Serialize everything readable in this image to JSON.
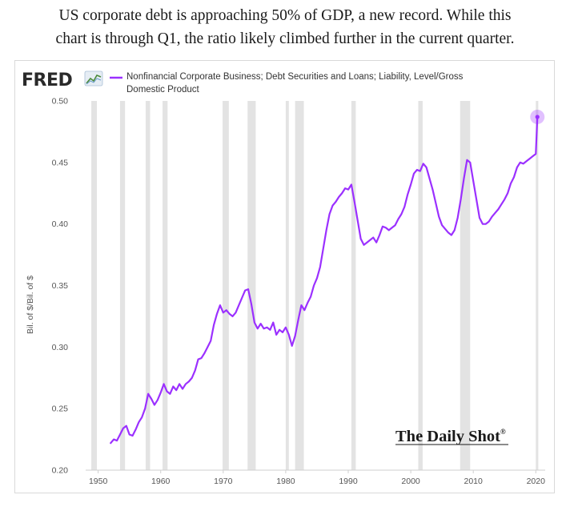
{
  "caption": {
    "line1": "US corporate debt is approaching 50% of GDP, a new record. While this",
    "line2": "chart is through Q1, the ratio likely climbed further in the current quarter."
  },
  "brand": {
    "fred_logo": "FRED",
    "watermark": "The Daily Shot",
    "watermark_mark": "®"
  },
  "colors": {
    "series": "#9b30ff",
    "recession": "#e3e3e3",
    "axis_text": "#555555",
    "grid": "#e6e6e6"
  },
  "chart_data": {
    "type": "line",
    "title": "",
    "xlabel": "",
    "ylabel": "Bil. of $/Bil. of $",
    "xlim": [
      1948,
      2021.5
    ],
    "ylim": [
      0.2,
      0.5
    ],
    "x_ticks": [
      "1950",
      "1960",
      "1970",
      "1980",
      "1990",
      "2000",
      "2010",
      "2020"
    ],
    "x_tick_values": [
      1950,
      1960,
      1970,
      1980,
      1990,
      2000,
      2010,
      2020
    ],
    "y_ticks": [
      "0.50",
      "0.45",
      "0.40",
      "0.35",
      "0.30",
      "0.25",
      "0.20"
    ],
    "y_tick_values": [
      0.5,
      0.45,
      0.4,
      0.35,
      0.3,
      0.25,
      0.2
    ],
    "grid": false,
    "legend_position": "top",
    "series": [
      {
        "name": "Nonfinancial Corporate Business; Debt Securities and Loans; Liability, Level/Gross Domestic Product",
        "last_point_highlighted": true,
        "x": [
          1952.0,
          1952.5,
          1953.0,
          1953.5,
          1954.0,
          1954.5,
          1955.0,
          1955.5,
          1956.0,
          1956.5,
          1957.0,
          1957.5,
          1958.0,
          1958.5,
          1959.0,
          1959.5,
          1960.0,
          1960.5,
          1961.0,
          1961.5,
          1962.0,
          1962.5,
          1963.0,
          1963.5,
          1964.0,
          1964.5,
          1965.0,
          1965.5,
          1966.0,
          1966.5,
          1967.0,
          1967.5,
          1968.0,
          1968.5,
          1969.0,
          1969.5,
          1970.0,
          1970.5,
          1971.0,
          1971.5,
          1972.0,
          1972.5,
          1973.0,
          1973.5,
          1974.0,
          1974.5,
          1975.0,
          1975.5,
          1976.0,
          1976.5,
          1977.0,
          1977.5,
          1978.0,
          1978.5,
          1979.0,
          1979.5,
          1980.0,
          1980.5,
          1981.0,
          1981.5,
          1982.0,
          1982.5,
          1983.0,
          1983.5,
          1984.0,
          1984.5,
          1985.0,
          1985.5,
          1986.0,
          1986.5,
          1987.0,
          1987.5,
          1988.0,
          1988.5,
          1989.0,
          1989.5,
          1990.0,
          1990.5,
          1991.0,
          1991.5,
          1992.0,
          1992.5,
          1993.0,
          1993.5,
          1994.0,
          1994.5,
          1995.0,
          1995.5,
          1996.0,
          1996.5,
          1997.0,
          1997.5,
          1998.0,
          1998.5,
          1999.0,
          1999.5,
          2000.0,
          2000.5,
          2001.0,
          2001.5,
          2002.0,
          2002.5,
          2003.0,
          2003.5,
          2004.0,
          2004.5,
          2005.0,
          2005.5,
          2006.0,
          2006.5,
          2007.0,
          2007.5,
          2008.0,
          2008.5,
          2009.0,
          2009.5,
          2010.0,
          2010.5,
          2011.0,
          2011.5,
          2012.0,
          2012.5,
          2013.0,
          2013.5,
          2014.0,
          2014.5,
          2015.0,
          2015.5,
          2016.0,
          2016.5,
          2017.0,
          2017.5,
          2018.0,
          2018.5,
          2019.0,
          2019.5,
          2020.0,
          2020.25
        ],
        "y": [
          0.222,
          0.225,
          0.224,
          0.229,
          0.234,
          0.236,
          0.229,
          0.228,
          0.233,
          0.239,
          0.243,
          0.25,
          0.262,
          0.258,
          0.253,
          0.257,
          0.263,
          0.27,
          0.264,
          0.262,
          0.268,
          0.265,
          0.27,
          0.266,
          0.27,
          0.272,
          0.275,
          0.281,
          0.29,
          0.291,
          0.295,
          0.3,
          0.305,
          0.318,
          0.327,
          0.334,
          0.328,
          0.33,
          0.327,
          0.325,
          0.328,
          0.334,
          0.34,
          0.346,
          0.347,
          0.335,
          0.32,
          0.315,
          0.319,
          0.315,
          0.316,
          0.314,
          0.32,
          0.31,
          0.314,
          0.312,
          0.316,
          0.31,
          0.301,
          0.309,
          0.322,
          0.334,
          0.33,
          0.336,
          0.341,
          0.35,
          0.356,
          0.365,
          0.38,
          0.395,
          0.408,
          0.415,
          0.418,
          0.422,
          0.425,
          0.429,
          0.428,
          0.432,
          0.418,
          0.403,
          0.388,
          0.383,
          0.385,
          0.387,
          0.389,
          0.385,
          0.391,
          0.398,
          0.397,
          0.395,
          0.397,
          0.399,
          0.404,
          0.408,
          0.414,
          0.424,
          0.432,
          0.441,
          0.444,
          0.443,
          0.449,
          0.446,
          0.437,
          0.428,
          0.417,
          0.406,
          0.399,
          0.396,
          0.393,
          0.391,
          0.395,
          0.405,
          0.42,
          0.437,
          0.452,
          0.45,
          0.435,
          0.42,
          0.405,
          0.4,
          0.4,
          0.402,
          0.406,
          0.409,
          0.412,
          0.416,
          0.42,
          0.425,
          0.433,
          0.438,
          0.446,
          0.45,
          0.449,
          0.451,
          0.453,
          0.455,
          0.457,
          0.487
        ]
      }
    ],
    "recession_bands": [
      [
        1948.9,
        1949.8
      ],
      [
        1953.5,
        1954.3
      ],
      [
        1957.6,
        1958.3
      ],
      [
        1960.3,
        1961.1
      ],
      [
        1969.9,
        1970.9
      ],
      [
        1973.9,
        1975.2
      ],
      [
        1980.0,
        1980.5
      ],
      [
        1981.5,
        1982.9
      ],
      [
        1990.5,
        1991.2
      ],
      [
        2001.2,
        2001.9
      ],
      [
        2007.9,
        2009.5
      ],
      [
        2020.0,
        2020.4
      ]
    ]
  }
}
